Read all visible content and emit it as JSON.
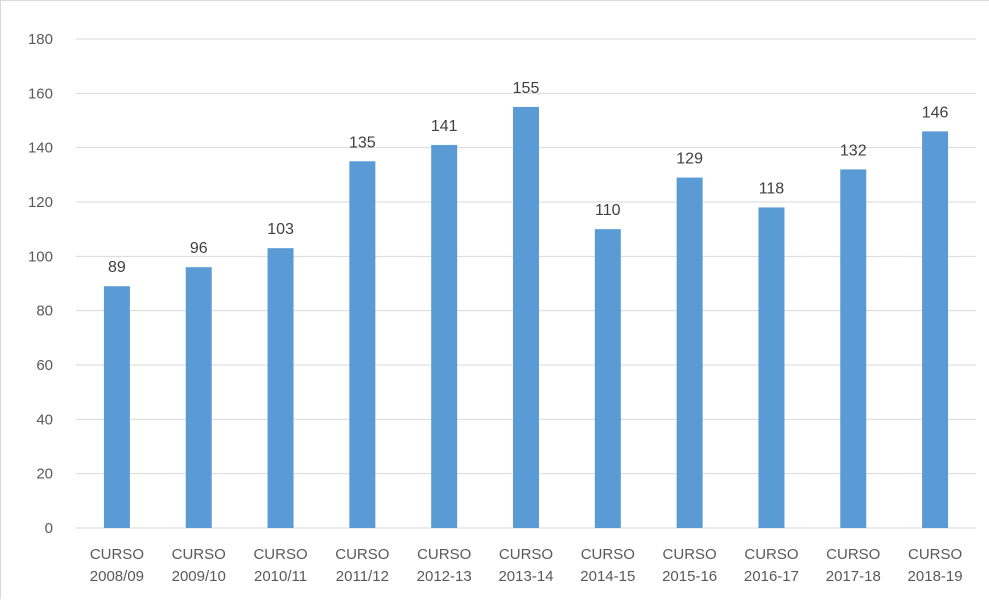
{
  "chart_data": {
    "type": "bar",
    "categories": [
      [
        "CURSO",
        "2008/09"
      ],
      [
        "CURSO",
        "2009/10"
      ],
      [
        "CURSO",
        "2010/11"
      ],
      [
        "CURSO",
        "2011/12"
      ],
      [
        "CURSO",
        "2012-13"
      ],
      [
        "CURSO",
        "2013-14"
      ],
      [
        "CURSO",
        "2014-15"
      ],
      [
        "CURSO",
        "2015-16"
      ],
      [
        "CURSO",
        "2016-17"
      ],
      [
        "CURSO",
        "2017-18"
      ],
      [
        "CURSO",
        "2018-19"
      ]
    ],
    "values": [
      89,
      96,
      103,
      135,
      141,
      155,
      110,
      129,
      118,
      132,
      146
    ],
    "title": "",
    "xlabel": "",
    "ylabel": "",
    "ylim": [
      0,
      180
    ],
    "yticks": [
      0,
      20,
      40,
      60,
      80,
      100,
      120,
      140,
      160,
      180
    ],
    "grid": true,
    "legend": "none",
    "data_labels": true,
    "colors": {
      "bar": "#5b9bd5",
      "grid": "#d9d9d9",
      "axis": "#d9d9d9",
      "text": "#595959"
    }
  }
}
